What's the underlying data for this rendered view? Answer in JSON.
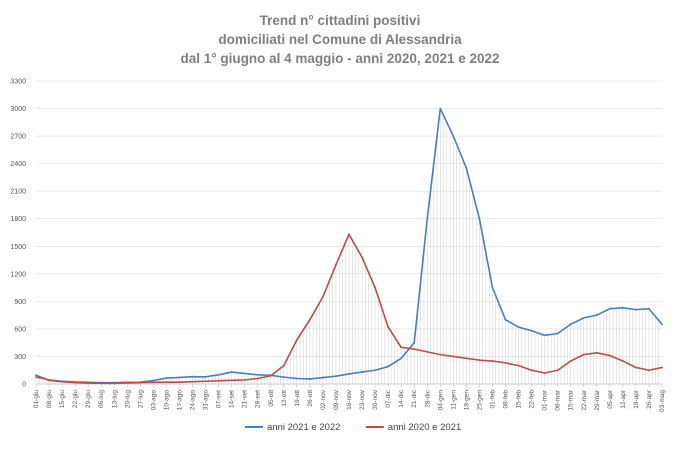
{
  "chart_data": {
    "type": "line",
    "title_lines": [
      "Trend n° cittadini positivi",
      "domiciliati nel Comune di Alessandria",
      "dal 1° giugno al 4 maggio - anni 2020, 2021 e 2022"
    ],
    "xlabel": "",
    "ylabel": "",
    "ylim": [
      0,
      3300
    ],
    "yticks": [
      0,
      300,
      600,
      900,
      1200,
      1500,
      1800,
      2100,
      2400,
      2700,
      3000,
      3300
    ],
    "ytick_labels": [
      "0",
      "300",
      "600",
      "900",
      "1200",
      "1500",
      "1800",
      "2100",
      "2400",
      "2700",
      "3000",
      "3300"
    ],
    "categories": [
      "01-giu",
      "08-giu",
      "15-giu",
      "22-giu",
      "29-giu",
      "06-lug",
      "13-lug",
      "20-lug",
      "27-lug",
      "03-ago",
      "10-ago",
      "17-ago",
      "24-ago",
      "31-ago",
      "07-set",
      "14-set",
      "21-set",
      "28-set",
      "05-ott",
      "12-ott",
      "19-ott",
      "26-ott",
      "02-nov",
      "09-nov",
      "16-nov",
      "23-nov",
      "30-nov",
      "07-dic",
      "14-dic",
      "21-dic",
      "28-dic",
      "04-gen",
      "11-gen",
      "18-gen",
      "25-gen",
      "01-feb",
      "08-feb",
      "15-feb",
      "22-feb",
      "01-mar",
      "08-mar",
      "15-mar",
      "22-mar",
      "29-mar",
      "05-apr",
      "12-apr",
      "19-apr",
      "26-apr",
      "03-mag"
    ],
    "grid": true,
    "legend_position": "bottom",
    "series": [
      {
        "name": "anni 2021 e 2022",
        "color": "#4a7ebb",
        "values": [
          75,
          45,
          30,
          22,
          18,
          15,
          15,
          18,
          20,
          38,
          65,
          72,
          80,
          78,
          100,
          130,
          115,
          100,
          95,
          75,
          60,
          55,
          70,
          85,
          110,
          130,
          150,
          190,
          280,
          450,
          1800,
          3000,
          2700,
          2350,
          1800,
          1050,
          700,
          620,
          580,
          530,
          550,
          650,
          720,
          750,
          820,
          830,
          810,
          820,
          650
        ]
      },
      {
        "name": "anni 2020 e 2021",
        "color": "#be4b48",
        "values": [
          95,
          40,
          25,
          15,
          10,
          8,
          8,
          12,
          15,
          18,
          20,
          20,
          25,
          30,
          35,
          40,
          45,
          60,
          90,
          200,
          480,
          700,
          950,
          1300,
          1630,
          1380,
          1050,
          620,
          400,
          380,
          350,
          320,
          300,
          280,
          260,
          250,
          230,
          200,
          150,
          120,
          150,
          250,
          320,
          340,
          310,
          250,
          180,
          150,
          180
        ]
      }
    ]
  }
}
